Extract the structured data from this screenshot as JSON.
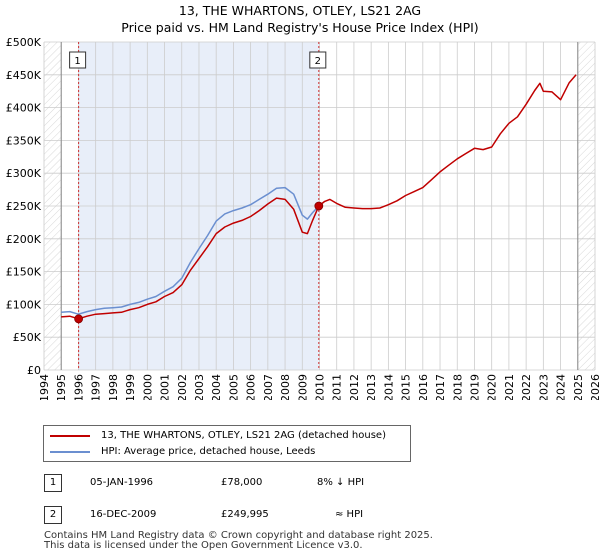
{
  "title_line1": "13, THE WHARTONS, OTLEY, LS21 2AG",
  "title_line2": "Price paid vs. HM Land Registry's House Price Index (HPI)",
  "colors": {
    "property": "#c00000",
    "hpi": "#6b8fd0",
    "shade": "#e8eef9",
    "grid": "#cccccc"
  },
  "chart_data": {
    "type": "line",
    "xlim": [
      1994,
      2026
    ],
    "ylim": [
      0,
      500000
    ],
    "y_ticks": [
      {
        "value": 0,
        "label": "£0"
      },
      {
        "value": 50000,
        "label": "£50K"
      },
      {
        "value": 100000,
        "label": "£100K"
      },
      {
        "value": 150000,
        "label": "£150K"
      },
      {
        "value": 200000,
        "label": "£200K"
      },
      {
        "value": 250000,
        "label": "£250K"
      },
      {
        "value": 300000,
        "label": "£300K"
      },
      {
        "value": 350000,
        "label": "£350K"
      },
      {
        "value": 400000,
        "label": "£400K"
      },
      {
        "value": 450000,
        "label": "£450K"
      },
      {
        "value": 500000,
        "label": "£500K"
      }
    ],
    "x_ticks": [
      "1994",
      "1995",
      "1996",
      "1997",
      "1998",
      "1999",
      "2000",
      "2001",
      "2002",
      "2003",
      "2004",
      "2005",
      "2006",
      "2007",
      "2008",
      "2009",
      "2010",
      "2011",
      "2012",
      "2013",
      "2014",
      "2015",
      "2016",
      "2017",
      "2018",
      "2019",
      "2020",
      "2021",
      "2022",
      "2023",
      "2024",
      "2025",
      "2026"
    ],
    "shaded_ranges": [
      [
        1994,
        1995.0
      ],
      [
        2025.0,
        2026
      ]
    ],
    "ownership_range": [
      1996.01,
      2009.96
    ],
    "annotations": [
      {
        "label": "1",
        "x": 1996.01,
        "value": 78000
      },
      {
        "label": "2",
        "x": 2009.96,
        "value": 249995
      }
    ],
    "series": [
      {
        "name": "13, THE WHARTONS, OTLEY, LS21 2AG (detached house)",
        "x": [
          1995.0,
          1995.5,
          1996.0,
          1996.5,
          1997.0,
          1997.5,
          1998.0,
          1998.5,
          1999.0,
          1999.5,
          2000.0,
          2000.5,
          2001.0,
          2001.5,
          2002.0,
          2002.5,
          2003.0,
          2003.5,
          2004.0,
          2004.5,
          2005.0,
          2005.5,
          2006.0,
          2006.5,
          2007.0,
          2007.5,
          2008.0,
          2008.5,
          2009.0,
          2009.3,
          2009.6,
          2009.96,
          2010.3,
          2010.6,
          2011.0,
          2011.5,
          2012.0,
          2012.5,
          2013.0,
          2013.5,
          2014.0,
          2014.5,
          2015.0,
          2015.5,
          2016.0,
          2016.5,
          2017.0,
          2017.5,
          2018.0,
          2018.5,
          2019.0,
          2019.5,
          2020.0,
          2020.5,
          2021.0,
          2021.5,
          2022.0,
          2022.5,
          2022.8,
          2023.0,
          2023.5,
          2024.0,
          2024.5,
          2024.9
        ],
        "values": [
          81000,
          82000,
          78000,
          82000,
          85000,
          86000,
          87000,
          88000,
          92000,
          95000,
          100000,
          104000,
          112000,
          118000,
          130000,
          152000,
          170000,
          188000,
          208000,
          218000,
          224000,
          228000,
          234000,
          243000,
          253000,
          262000,
          260000,
          245000,
          210000,
          208000,
          228000,
          249995,
          257000,
          260000,
          254000,
          248000,
          247000,
          246000,
          246000,
          247000,
          252000,
          258000,
          266000,
          272000,
          278000,
          290000,
          302000,
          312000,
          322000,
          330000,
          338000,
          336000,
          340000,
          360000,
          376000,
          386000,
          405000,
          426000,
          437000,
          425000,
          424000,
          412000,
          438000,
          450000
        ]
      },
      {
        "name": "HPI: Average price, detached house, Leeds",
        "x": [
          1995.0,
          1995.5,
          1996.0,
          1996.5,
          1997.0,
          1997.5,
          1998.0,
          1998.5,
          1999.0,
          1999.5,
          2000.0,
          2000.5,
          2001.0,
          2001.5,
          2002.0,
          2002.5,
          2003.0,
          2003.5,
          2004.0,
          2004.5,
          2005.0,
          2005.5,
          2006.0,
          2006.5,
          2007.0,
          2007.5,
          2008.0,
          2008.5,
          2009.0,
          2009.3,
          2009.6,
          2009.96
        ],
        "values": [
          88000,
          89000,
          85000,
          89000,
          92000,
          94000,
          95000,
          96000,
          100000,
          103000,
          108000,
          112000,
          120000,
          127000,
          140000,
          164000,
          185000,
          205000,
          227000,
          238000,
          243000,
          247000,
          252000,
          260000,
          268000,
          277000,
          278000,
          268000,
          236000,
          230000,
          240000,
          249995
        ]
      }
    ]
  },
  "legend": {
    "property_label": "13, THE WHARTONS, OTLEY, LS21 2AG (detached house)",
    "hpi_label": "HPI: Average price, detached house, Leeds"
  },
  "transactions": [
    {
      "badge": "1",
      "date": "05-JAN-1996",
      "price": "£78,000",
      "vs_hpi": "8% ↓ HPI"
    },
    {
      "badge": "2",
      "date": "16-DEC-2009",
      "price": "£249,995",
      "vs_hpi": "≈ HPI"
    }
  ],
  "footer_line1": "Contains HM Land Registry data © Crown copyright and database right 2025.",
  "footer_line2": "This data is licensed under the Open Government Licence v3.0."
}
